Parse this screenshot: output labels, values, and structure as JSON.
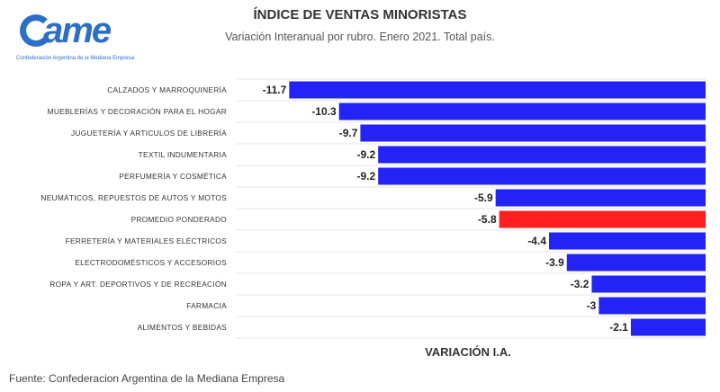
{
  "logo": {
    "text": "ame",
    "subtitle": "Confederación Argentina de la Mediana Empresa",
    "color": "#2b6fc7"
  },
  "chart_data": {
    "type": "bar",
    "orientation": "horizontal",
    "title": "ÍNDICE DE VENTAS MINORISTAS",
    "subtitle": "Variación Interanual por rubro. Enero 2021. Total país.",
    "xlabel": "VARIACIÓN I.A.",
    "ylabel": "",
    "categories": [
      "CALZADOS Y MARROQUINERÍA",
      "MUEBLERÍAS Y DECORACIÓN PARA EL HOGAR",
      "JUGUETERÍA Y ARTICULOS DE LIBRERÍA",
      "TEXTIL INDUMENTARIA",
      "PERFUMERÍA Y COSMÉTICA",
      "NEUMÁTICOS, REPUESTOS DE AUTOS Y MOTOS",
      "PROMEDIO PONDERADO",
      "FERRETERÍA Y MATERIALES ELÉCTRICOS",
      "ELECTRODOMÉSTICOS Y ACCESORIOS",
      "ROPA Y ART. DEPORTIVOS Y DE RECREACIÓN",
      "FARMACIA",
      "ALIMENTOS Y BEBIDAS"
    ],
    "values": [
      -11.7,
      -10.3,
      -9.7,
      -9.2,
      -9.2,
      -5.9,
      -5.8,
      -4.4,
      -3.9,
      -3.2,
      -3,
      -2.1
    ],
    "value_labels": [
      "-11.7",
      "-10.3",
      "-9.7",
      "-9.2",
      "-9.2",
      "-5.9",
      "-5.8",
      "-4.4",
      "-3.9",
      "-3.2",
      "-3",
      "-2.1"
    ],
    "highlight_index": 6,
    "colors": {
      "bar": "#2323f5",
      "highlight": "#ff1f1f",
      "grid": "#e6e6e6"
    },
    "xlim": [
      -13.2,
      0
    ],
    "grid": true,
    "legend": "none"
  },
  "source": "Fuente: Confederacion Argentina de la Mediana Empresa"
}
